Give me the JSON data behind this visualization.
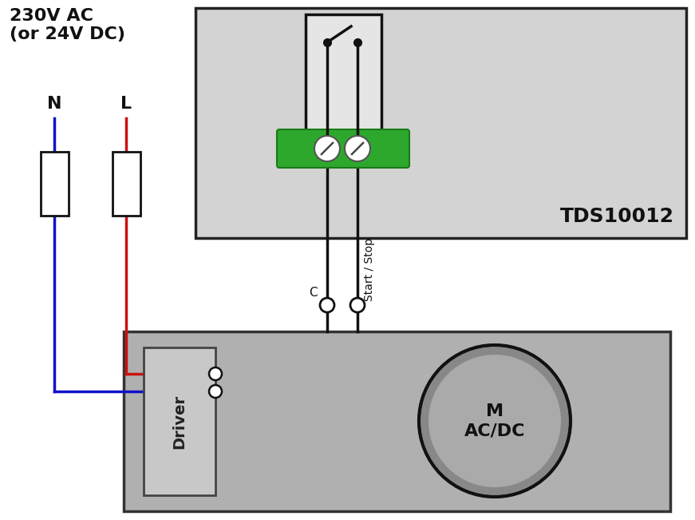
{
  "bg_color": "#ffffff",
  "tds_box_color": "#d3d3d3",
  "tds_box_border": "#222222",
  "tds_label": "TDS10012",
  "green_strip_color": "#2da82d",
  "motor_box_color": "#b0b0b0",
  "driver_box_color": "#c8c8c8",
  "wire_blue": "#1111cc",
  "wire_red": "#cc1111",
  "wire_black": "#111111",
  "title_text": "230V AC\n(or 24V DC)",
  "N_label": "N",
  "L_label": "L",
  "C_label": "C",
  "start_stop_label": "Start / Stop",
  "M_label": "M\nAC/DC",
  "driver_label": "Driver"
}
